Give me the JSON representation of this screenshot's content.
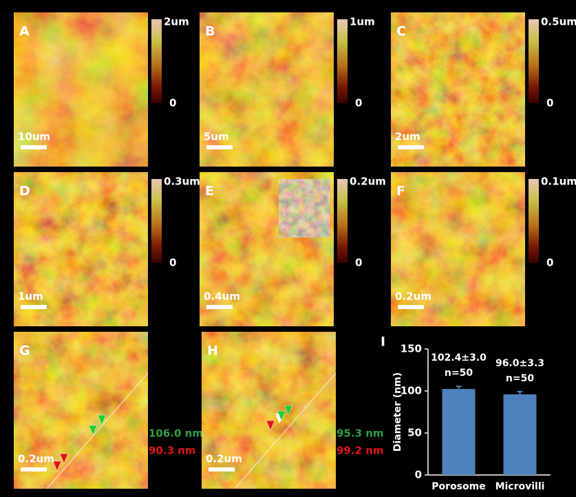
{
  "panels": [
    {
      "label": "A",
      "scale_max": "2um",
      "scale_min": "0",
      "scale_bar": "10um"
    },
    {
      "label": "B",
      "scale_max": "1um",
      "scale_min": "0",
      "scale_bar": "5um"
    },
    {
      "label": "C",
      "scale_max": "0.5um",
      "scale_min": "0",
      "scale_bar": "2um"
    },
    {
      "label": "D",
      "scale_max": "0.3um",
      "scale_min": "0",
      "scale_bar": "1um"
    },
    {
      "label": "E",
      "scale_max": "0.2um",
      "scale_min": "0",
      "scale_bar": "0.4um"
    },
    {
      "label": "F",
      "scale_max": "0.1um",
      "scale_min": "0",
      "scale_bar": "0.2um"
    },
    {
      "label": "G",
      "scale_bar": "0.2um",
      "measurements": [
        {
          "text": "106.0 nm",
          "color": "#2ea043"
        },
        {
          "text": "90.3 nm",
          "color": "#e01515"
        }
      ]
    },
    {
      "label": "H",
      "scale_bar": "0.2um",
      "measurements": [
        {
          "text": "95.3 nm",
          "color": "#2ea043"
        },
        {
          "text": "99.2 nm",
          "color": "#e01515"
        }
      ]
    }
  ],
  "chart_data": {
    "type": "bar",
    "panel_label": "I",
    "y_label": "Diameter (nm)",
    "categories": [
      "Porosome",
      "Microvilli"
    ],
    "values": [
      102.4,
      96.0
    ],
    "errors": [
      3.0,
      3.3
    ],
    "value_labels": [
      "102.4±3.0",
      "96.0±3.3"
    ],
    "n_labels": [
      "n=50",
      "n=50"
    ],
    "color": "#4f81bd",
    "ylim": [
      0,
      150
    ],
    "yticks": [
      0,
      50,
      100,
      150
    ]
  }
}
